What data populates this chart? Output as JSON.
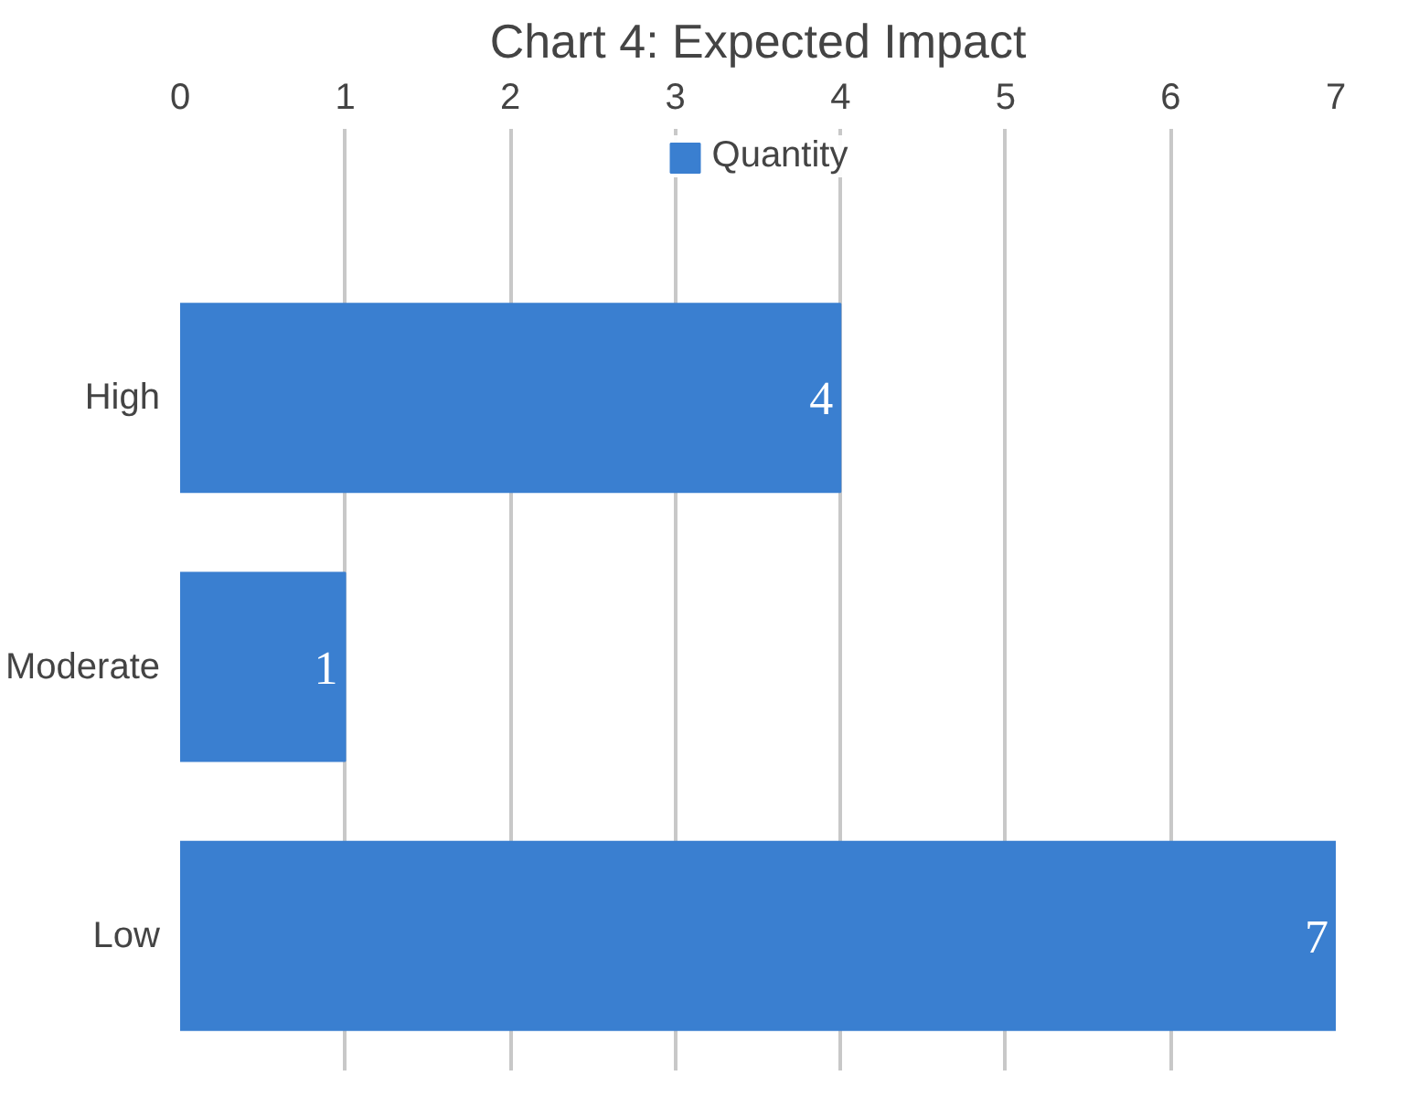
{
  "chart_data": {
    "type": "bar",
    "orientation": "horizontal",
    "title": "Chart 4: Expected Impact",
    "categories": [
      "High",
      "Moderate",
      "Low"
    ],
    "series": [
      {
        "name": "Quantity",
        "color": "#3a7fd0",
        "values": [
          4,
          1,
          7
        ]
      }
    ],
    "xlim": [
      0,
      7
    ],
    "xticks": [
      0,
      1,
      2,
      3,
      4,
      5,
      6,
      7
    ],
    "grid": "x",
    "legend": "top",
    "data_labels": true
  }
}
